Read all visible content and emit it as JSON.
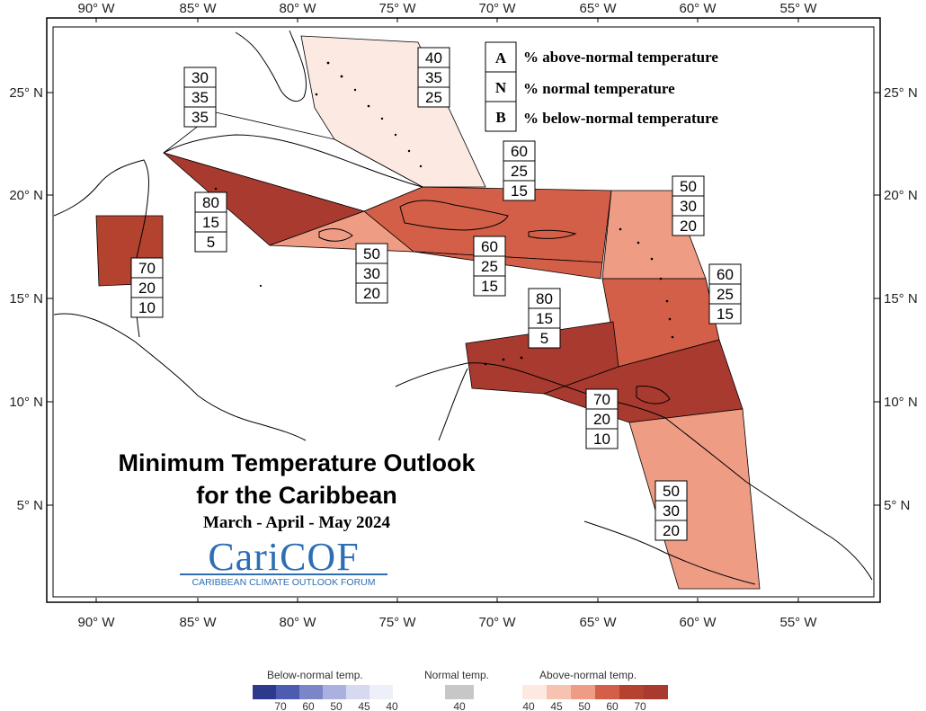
{
  "map": {
    "lon_ticks": [
      "90° W",
      "85° W",
      "80° W",
      "75° W",
      "70° W",
      "65° W",
      "60° W",
      "55° W"
    ],
    "lat_ticks": [
      "25° N",
      "20° N",
      "15° N",
      "10° N",
      "5° N"
    ],
    "regions": [
      {
        "id": "bahamas",
        "values": [
          "40",
          "35",
          "25"
        ],
        "fill": "#fce9e1"
      },
      {
        "id": "cuba",
        "values": [
          "30",
          "35",
          "35"
        ],
        "fill": "#ffffff"
      },
      {
        "id": "cayman-west",
        "values": [
          "80",
          "15",
          "5"
        ],
        "fill": "#a83a2f"
      },
      {
        "id": "belize",
        "values": [
          "70",
          "20",
          "10"
        ],
        "fill": "#b3432f"
      },
      {
        "id": "jamaica",
        "values": [
          "50",
          "30",
          "20"
        ],
        "fill": "#ef9c85"
      },
      {
        "id": "hispaniola-pr",
        "values": [
          "60",
          "25",
          "15"
        ],
        "fill": "#d35f48"
      },
      {
        "id": "south-hispaniola",
        "values": [
          "60",
          "25",
          "15"
        ],
        "fill": "#d35f48"
      },
      {
        "id": "northern-lesser-antilles",
        "values": [
          "50",
          "30",
          "20"
        ],
        "fill": "#ef9c85"
      },
      {
        "id": "windward-islands",
        "values": [
          "60",
          "25",
          "15"
        ],
        "fill": "#d35f48"
      },
      {
        "id": "abc-islands",
        "values": [
          "80",
          "15",
          "5"
        ],
        "fill": "#a83a2f"
      },
      {
        "id": "trinidad",
        "values": [
          "70",
          "20",
          "10"
        ],
        "fill": "#a83a2f"
      },
      {
        "id": "guianas",
        "values": [
          "50",
          "30",
          "20"
        ],
        "fill": "#ef9c85"
      }
    ]
  },
  "key": {
    "rows": [
      {
        "letter": "A",
        "text": "% above-normal temperature"
      },
      {
        "letter": "N",
        "text": "% normal temperature"
      },
      {
        "letter": "B",
        "text": "% below-normal temperature"
      }
    ]
  },
  "title": {
    "line1": "Minimum Temperature Outlook",
    "line2": "for the Caribbean",
    "season": "March - April - May 2024"
  },
  "logo": {
    "name": "CariCOF",
    "subtitle": "CARIBBEAN CLIMATE OUTLOOK FORUM"
  },
  "colorbar": {
    "below": {
      "label": "Below-normal temp.",
      "ticks": [
        "70",
        "60",
        "50",
        "45",
        "40"
      ],
      "colors": [
        "#2d3a8c",
        "#4d5bb0",
        "#7b86c9",
        "#aab1de",
        "#d6d9ef",
        "#eef0f9"
      ]
    },
    "normal": {
      "label": "Normal temp.",
      "ticks": [
        "40"
      ],
      "colors": [
        "#c7c7c7"
      ]
    },
    "above": {
      "label": "Above-normal temp.",
      "ticks": [
        "40",
        "45",
        "50",
        "60",
        "70"
      ],
      "colors": [
        "#fde9e1",
        "#f7c3b1",
        "#ef9c85",
        "#d35f48",
        "#b3432f",
        "#a83a2f"
      ]
    }
  }
}
